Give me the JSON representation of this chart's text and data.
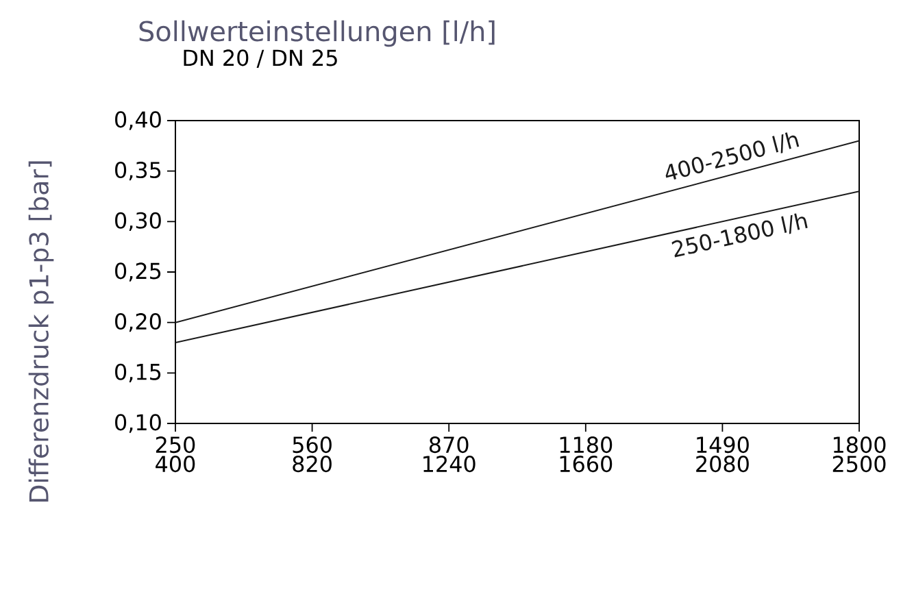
{
  "chart_data": {
    "type": "line",
    "title": "Sollwerteinstellungen [l/h]",
    "subtitle": "DN 20 / DN 25",
    "ylabel": "Differenzdruck p1-p3 [bar]",
    "xlim": [
      250,
      1800
    ],
    "xticks": [
      250,
      560,
      870,
      1180,
      1490,
      1800
    ],
    "x2lim": [
      400,
      2500
    ],
    "x2ticks": [
      400,
      820,
      1240,
      1660,
      2080,
      2500
    ],
    "ylim": [
      0.1,
      0.4
    ],
    "yticks": [
      {
        "value": 0.1,
        "label": "0,10"
      },
      {
        "value": 0.15,
        "label": "0,15"
      },
      {
        "value": 0.2,
        "label": "0,20"
      },
      {
        "value": 0.25,
        "label": "0,25"
      },
      {
        "value": 0.3,
        "label": "0,30"
      },
      {
        "value": 0.35,
        "label": "0,35"
      },
      {
        "value": 0.4,
        "label": "0,40"
      }
    ],
    "grid": false,
    "marker": "none",
    "line_style": "solid",
    "series": [
      {
        "name": "400-2500 l/h",
        "color": "#1a1a1a",
        "axis": "x2",
        "x": [
          400,
          2500
        ],
        "values": [
          0.2,
          0.38
        ]
      },
      {
        "name": "250-1800 l/h",
        "color": "#1a1a1a",
        "x": [
          250,
          1800
        ],
        "values": [
          0.18,
          0.33
        ]
      }
    ]
  }
}
